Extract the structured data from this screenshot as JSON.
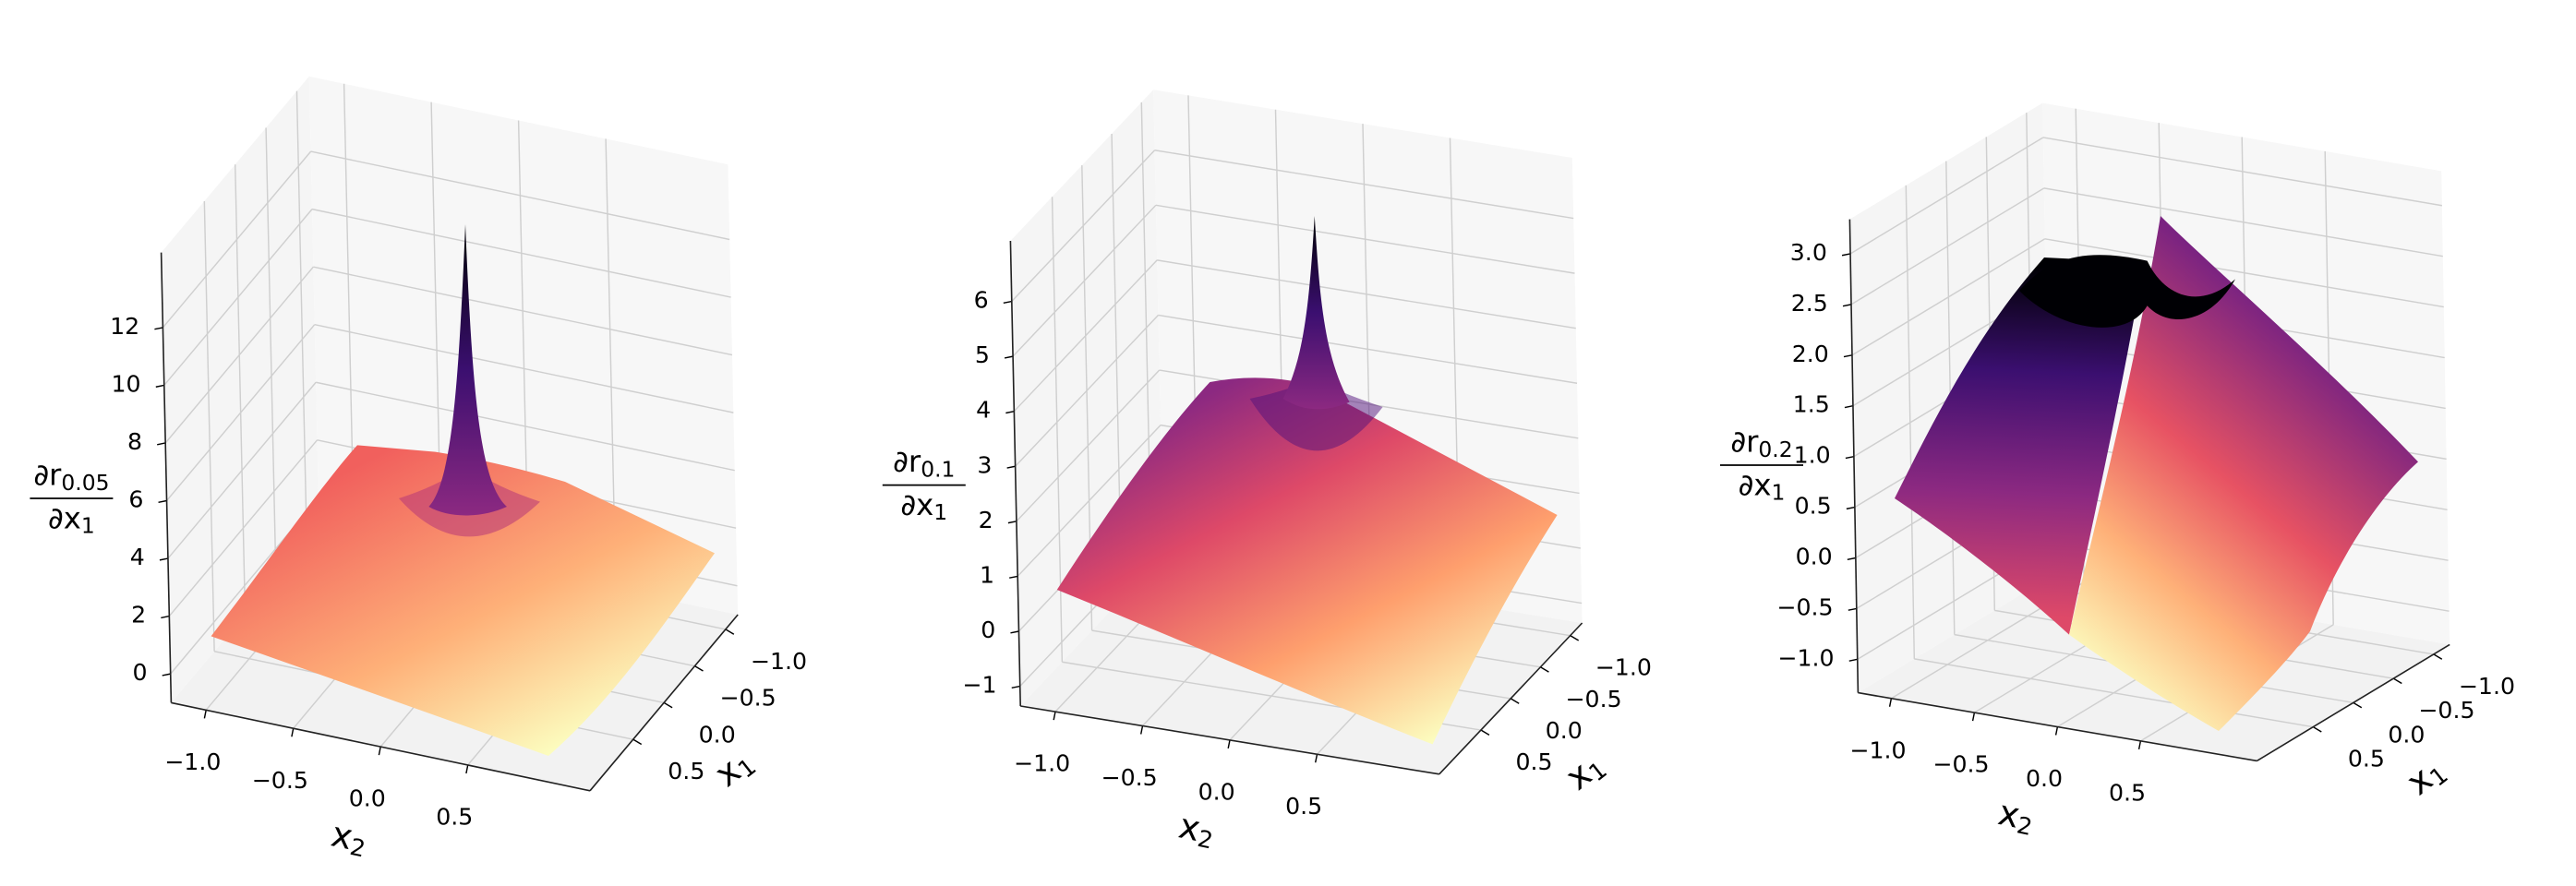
{
  "chart_data": [
    {
      "type": "surface",
      "colormap": "magma",
      "grid": true,
      "z_label": {
        "numerator": "∂r",
        "numerator_sub": "0.05",
        "denominator": "∂x",
        "denominator_sub": "1"
      },
      "x2_label": {
        "text": "x",
        "sub": "2"
      },
      "x1_label": {
        "text": "x",
        "sub": "1"
      },
      "x2lim": [
        -1.2,
        1.2
      ],
      "x2ticks": [
        {
          "value": -1,
          "label": "−1.0"
        },
        {
          "value": -0.5,
          "label": "−0.5"
        },
        {
          "value": 0,
          "label": "0.0"
        },
        0.5
      ],
      "x1lim": [
        -1.2,
        1.2
      ],
      "x1ticks": [
        {
          "value": -1,
          "label": "−1.0"
        },
        {
          "value": -0.5,
          "label": "−0.5"
        },
        {
          "value": 0,
          "label": "0.0"
        },
        0.5
      ],
      "zlim": [
        -1,
        14.6
      ],
      "zticks": [
        0,
        2,
        4,
        6,
        8,
        10,
        12
      ]
    },
    {
      "type": "surface",
      "colormap": "magma",
      "grid": true,
      "z_label": {
        "numerator": "∂r",
        "numerator_sub": "0.1",
        "denominator": "∂x",
        "denominator_sub": "1"
      },
      "x2_label": {
        "text": "x",
        "sub": "2"
      },
      "x1_label": {
        "text": "x",
        "sub": "1"
      },
      "x2lim": [
        -1.2,
        1.2
      ],
      "x2ticks": [
        {
          "value": -1,
          "label": "−1.0"
        },
        {
          "value": -0.5,
          "label": "−0.5"
        },
        {
          "value": 0,
          "label": "0.0"
        },
        0.5
      ],
      "x1lim": [
        -1.2,
        1.2
      ],
      "x1ticks": [
        {
          "value": -1,
          "label": "−1.0"
        },
        {
          "value": -0.5,
          "label": "−0.5"
        },
        {
          "value": 0,
          "label": "0.0"
        },
        0.5
      ],
      "zlim": [
        -1.36,
        7.1
      ],
      "zticks": [
        {
          "value": -1,
          "label": "−1"
        },
        0,
        1,
        2,
        3,
        4,
        5,
        6
      ]
    },
    {
      "type": "surface",
      "colormap": "magma",
      "grid": true,
      "z_label": {
        "numerator": "∂r",
        "numerator_sub": "0.2",
        "denominator": "∂x",
        "denominator_sub": "1"
      },
      "x2_label": {
        "text": "x",
        "sub": "2"
      },
      "x1_label": {
        "text": "x",
        "sub": "1"
      },
      "x2lim": [
        -1.2,
        1.2
      ],
      "x2ticks": [
        {
          "value": -1,
          "label": "−1.0"
        },
        {
          "value": -0.5,
          "label": "−0.5"
        },
        {
          "value": 0,
          "label": "0.0"
        },
        0.5
      ],
      "x1lim": [
        -1.2,
        1.2
      ],
      "x1ticks": [
        {
          "value": -1,
          "label": "−1.0"
        },
        {
          "value": -0.5,
          "label": "−0.5"
        },
        {
          "value": 0,
          "label": "0.0"
        },
        0.5
      ],
      "zlim": [
        -1.33,
        3.34
      ],
      "zticks": [
        {
          "value": -1,
          "label": "−1.0"
        },
        {
          "value": -0.5,
          "label": "−0.5"
        },
        {
          "value": 0,
          "label": "0.0"
        },
        0.5,
        {
          "value": 1,
          "label": "1.0"
        },
        1.5,
        {
          "value": 2,
          "label": "2.0"
        },
        2.5,
        {
          "value": 3,
          "label": "3.0"
        }
      ]
    }
  ]
}
